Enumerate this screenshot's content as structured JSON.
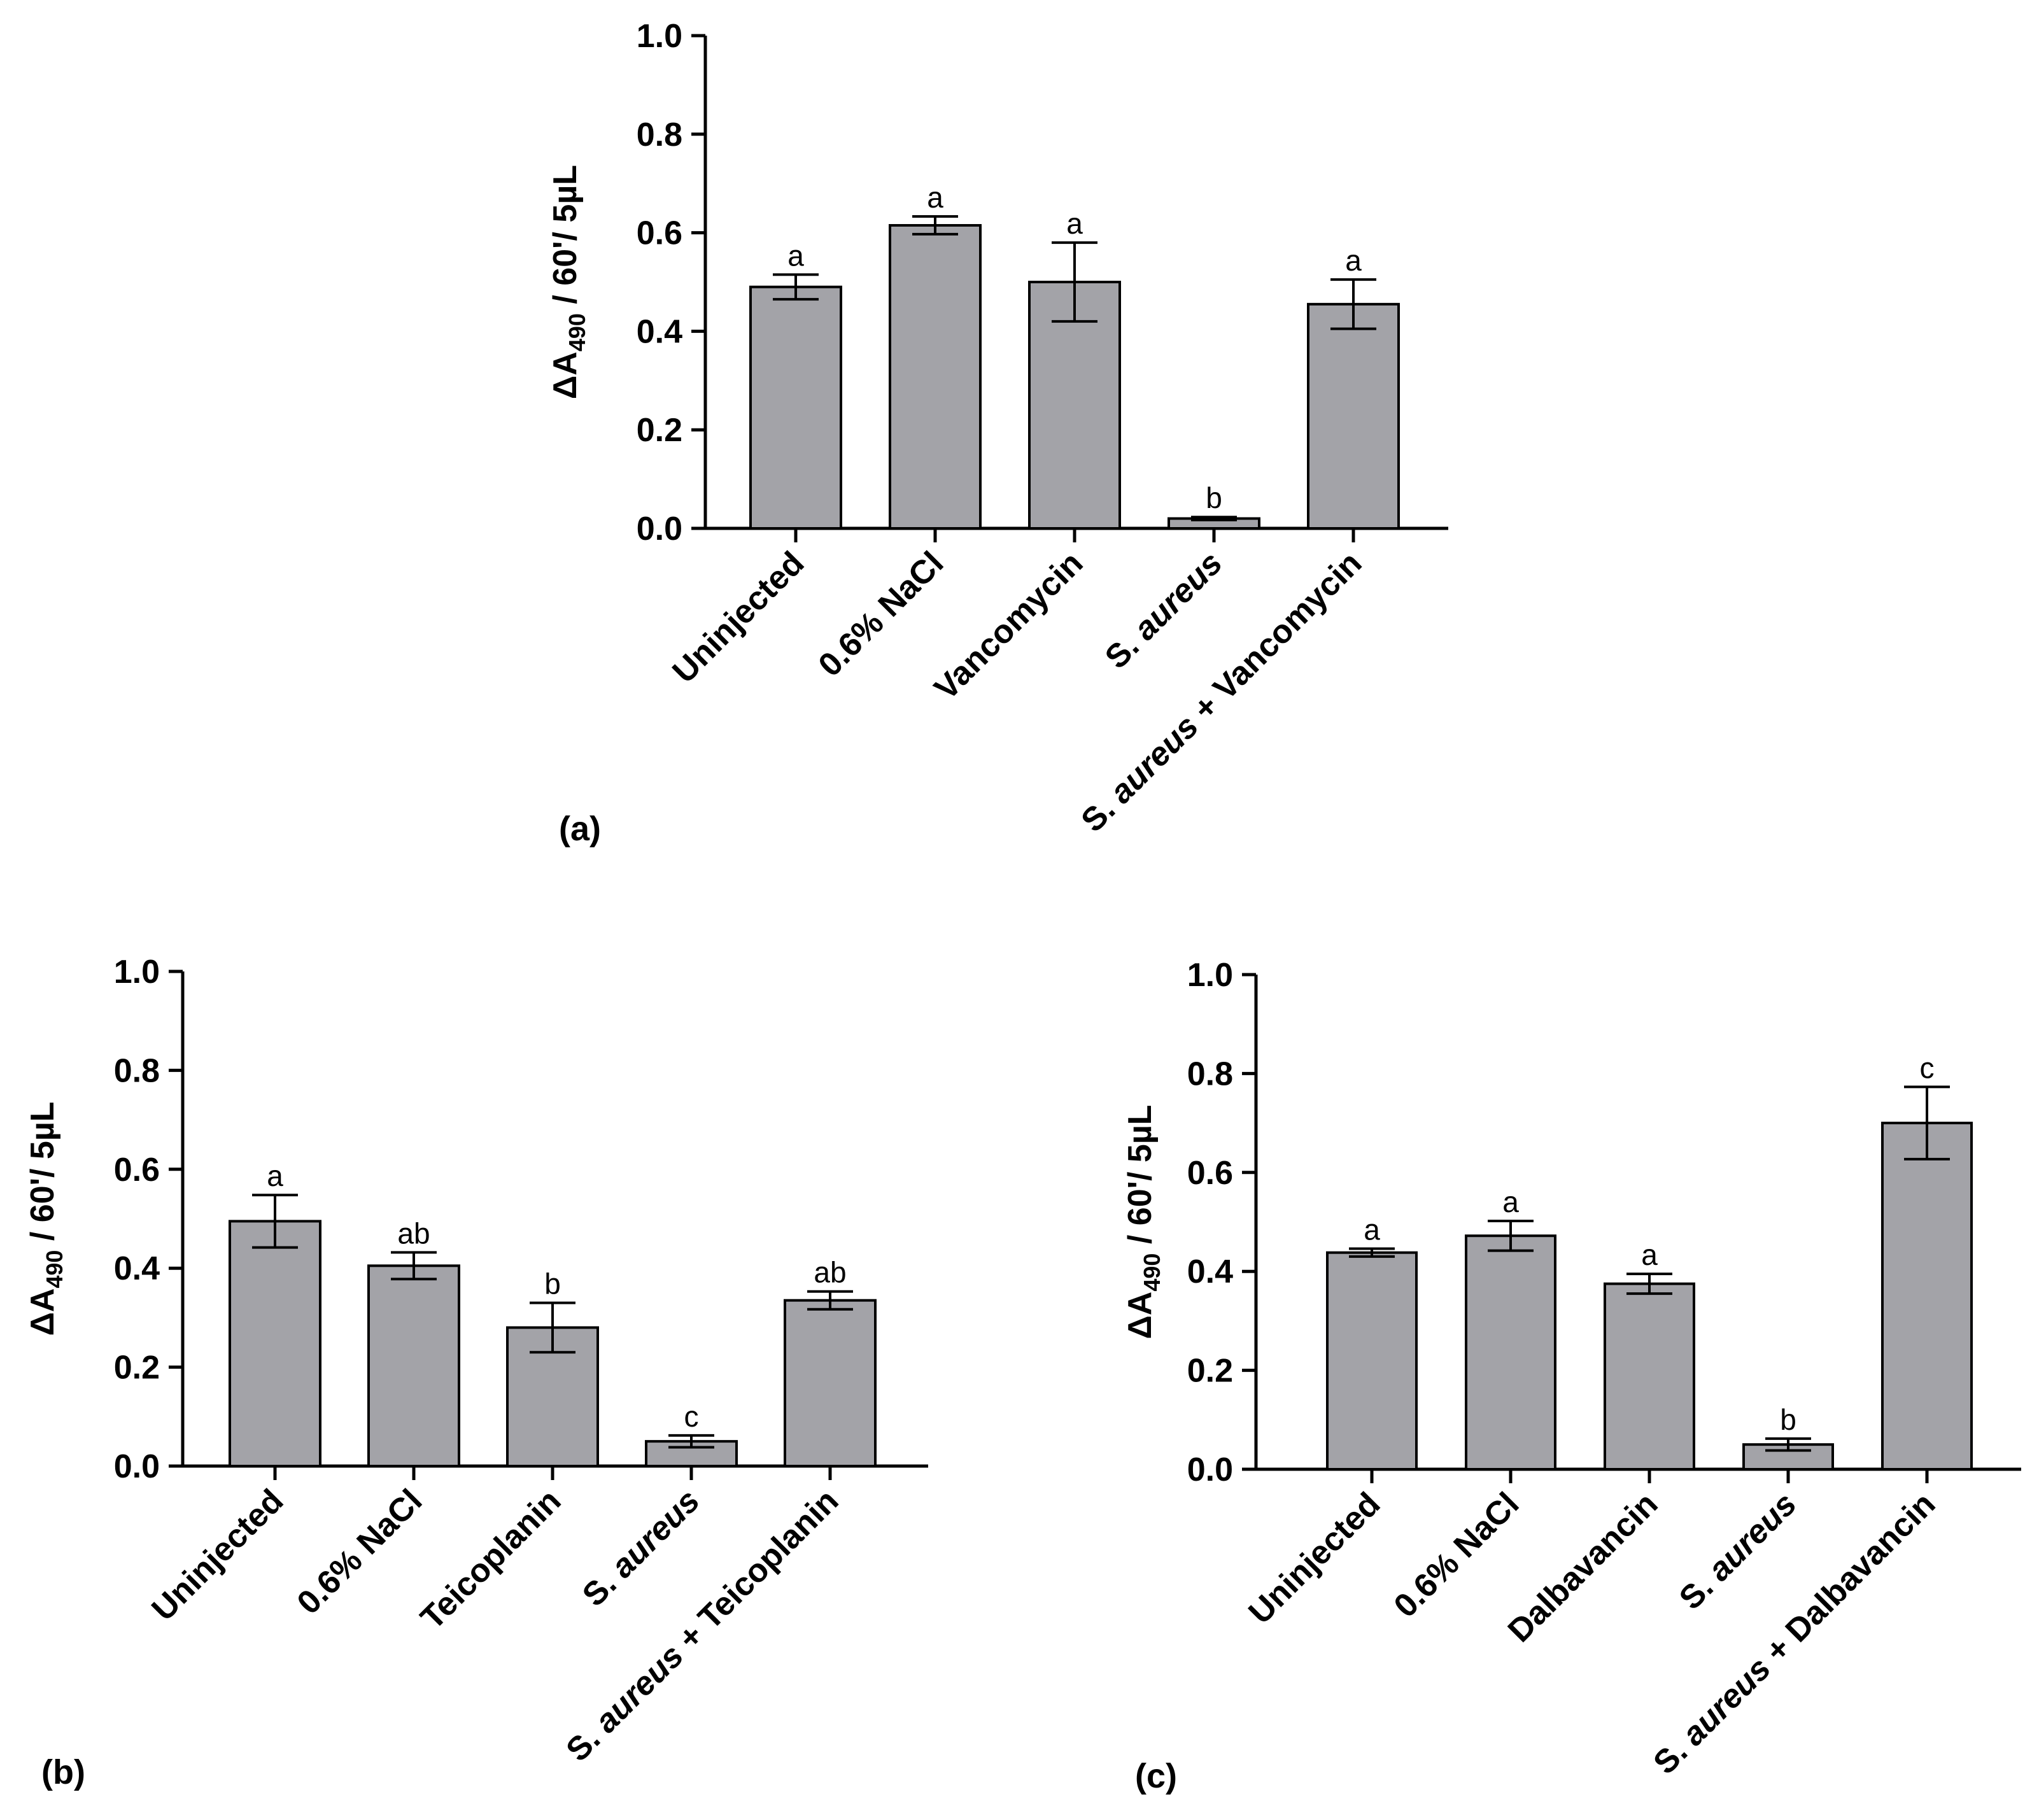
{
  "colors": {
    "bar_fill": "#a3a3a8",
    "bar_stroke": "#000000",
    "axis": "#000000"
  },
  "chart_data": [
    {
      "type": "bar",
      "panel_label": "(a)",
      "ylabel_main": "ΔA",
      "ylabel_sub": "490",
      "ylabel_rest": " / 60'/ 5µL",
      "ylim": [
        0,
        1.0
      ],
      "yticks": [
        "0.0",
        "0.2",
        "0.4",
        "0.6",
        "0.8",
        "1.0"
      ],
      "categories": [
        {
          "plain": "Uninjected",
          "italic": "",
          "rest": ""
        },
        {
          "plain": "0.6% NaCl",
          "italic": "",
          "rest": ""
        },
        {
          "plain": "Vancomycin",
          "italic": "",
          "rest": ""
        },
        {
          "plain": "S. ",
          "italic": "aureus",
          "rest": ""
        },
        {
          "plain": "S. ",
          "italic": "aureus",
          "rest": " + Vancomycin"
        }
      ],
      "values": [
        0.49,
        0.615,
        0.5,
        0.02,
        0.455
      ],
      "errors": [
        0.025,
        0.018,
        0.08,
        0.003,
        0.05
      ],
      "significance": [
        "a",
        "a",
        "a",
        "b",
        "a"
      ]
    },
    {
      "type": "bar",
      "panel_label": "(b)",
      "ylabel_main": "ΔA",
      "ylabel_sub": "490",
      "ylabel_rest": " / 60'/ 5µL",
      "ylim": [
        0,
        1.0
      ],
      "yticks": [
        "0.0",
        "0.2",
        "0.4",
        "0.6",
        "0.8",
        "1.0"
      ],
      "categories": [
        {
          "plain": "Uninjected",
          "italic": "",
          "rest": ""
        },
        {
          "plain": "0.6% NaCl",
          "italic": "",
          "rest": ""
        },
        {
          "plain": "Teicoplanin",
          "italic": "",
          "rest": ""
        },
        {
          "plain": "S. ",
          "italic": "aureus",
          "rest": ""
        },
        {
          "plain": "S. ",
          "italic": "aureus",
          "rest": " + Teicoplanin"
        }
      ],
      "values": [
        0.495,
        0.405,
        0.28,
        0.05,
        0.335
      ],
      "errors": [
        0.053,
        0.027,
        0.05,
        0.012,
        0.018
      ],
      "significance": [
        "a",
        "ab",
        "b",
        "c",
        "ab"
      ]
    },
    {
      "type": "bar",
      "panel_label": "(c)",
      "ylabel_main": "ΔA",
      "ylabel_sub": "490",
      "ylabel_rest": " / 60'/ 5µL",
      "ylim": [
        0,
        1.0
      ],
      "yticks": [
        "0.0",
        "0.2",
        "0.4",
        "0.6",
        "0.8",
        "1.0"
      ],
      "categories": [
        {
          "plain": "Uninjected",
          "italic": "",
          "rest": ""
        },
        {
          "plain": "0.6% NaCl",
          "italic": "",
          "rest": ""
        },
        {
          "plain": "Dalbavancin",
          "italic": "",
          "rest": ""
        },
        {
          "plain": "S. ",
          "italic": "aureus",
          "rest": ""
        },
        {
          "plain": "S. ",
          "italic": "aureus",
          "rest": " + Dalbavancin"
        }
      ],
      "values": [
        0.438,
        0.472,
        0.375,
        0.05,
        0.7
      ],
      "errors": [
        0.008,
        0.03,
        0.02,
        0.012,
        0.073
      ],
      "significance": [
        "a",
        "a",
        "a",
        "b",
        "c"
      ]
    }
  ]
}
